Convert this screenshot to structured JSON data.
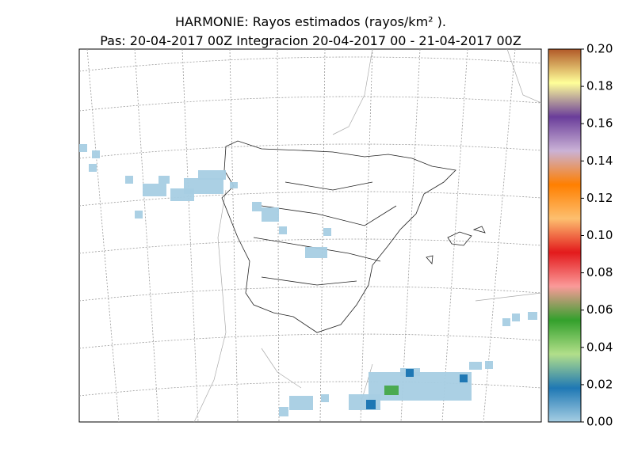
{
  "header": {
    "title": "HARMONIE: Rayos estimados  (rayos/km² ).",
    "subtitle": "Pas: 20-04-2017 00Z Integracion 20-04-2017 00 - 21-04-2017 00Z"
  },
  "colorbar": {
    "lim": [
      0,
      0.2
    ],
    "ticks": [
      {
        "value": 0,
        "label": "0.00"
      },
      {
        "value": 0.02,
        "label": "0.02"
      },
      {
        "value": 0.04,
        "label": "0.04"
      },
      {
        "value": 0.06,
        "label": "0.06"
      },
      {
        "value": 0.08,
        "label": "0.08"
      },
      {
        "value": 0.1,
        "label": "0.10"
      },
      {
        "value": 0.12,
        "label": "0.12"
      },
      {
        "value": 0.14,
        "label": "0.14"
      },
      {
        "value": 0.16,
        "label": "0.16"
      },
      {
        "value": 0.18,
        "label": "0.18"
      },
      {
        "value": 0.2,
        "label": "0.20"
      }
    ],
    "colors": [
      "#a6cee3",
      "#1f78b4",
      "#b2df8a",
      "#33a02c",
      "#fb9a99",
      "#e31a1c",
      "#fdbf6f",
      "#ff7f00",
      "#cab2d6",
      "#6a3d9a",
      "#ffff99",
      "#b15928"
    ]
  }
}
